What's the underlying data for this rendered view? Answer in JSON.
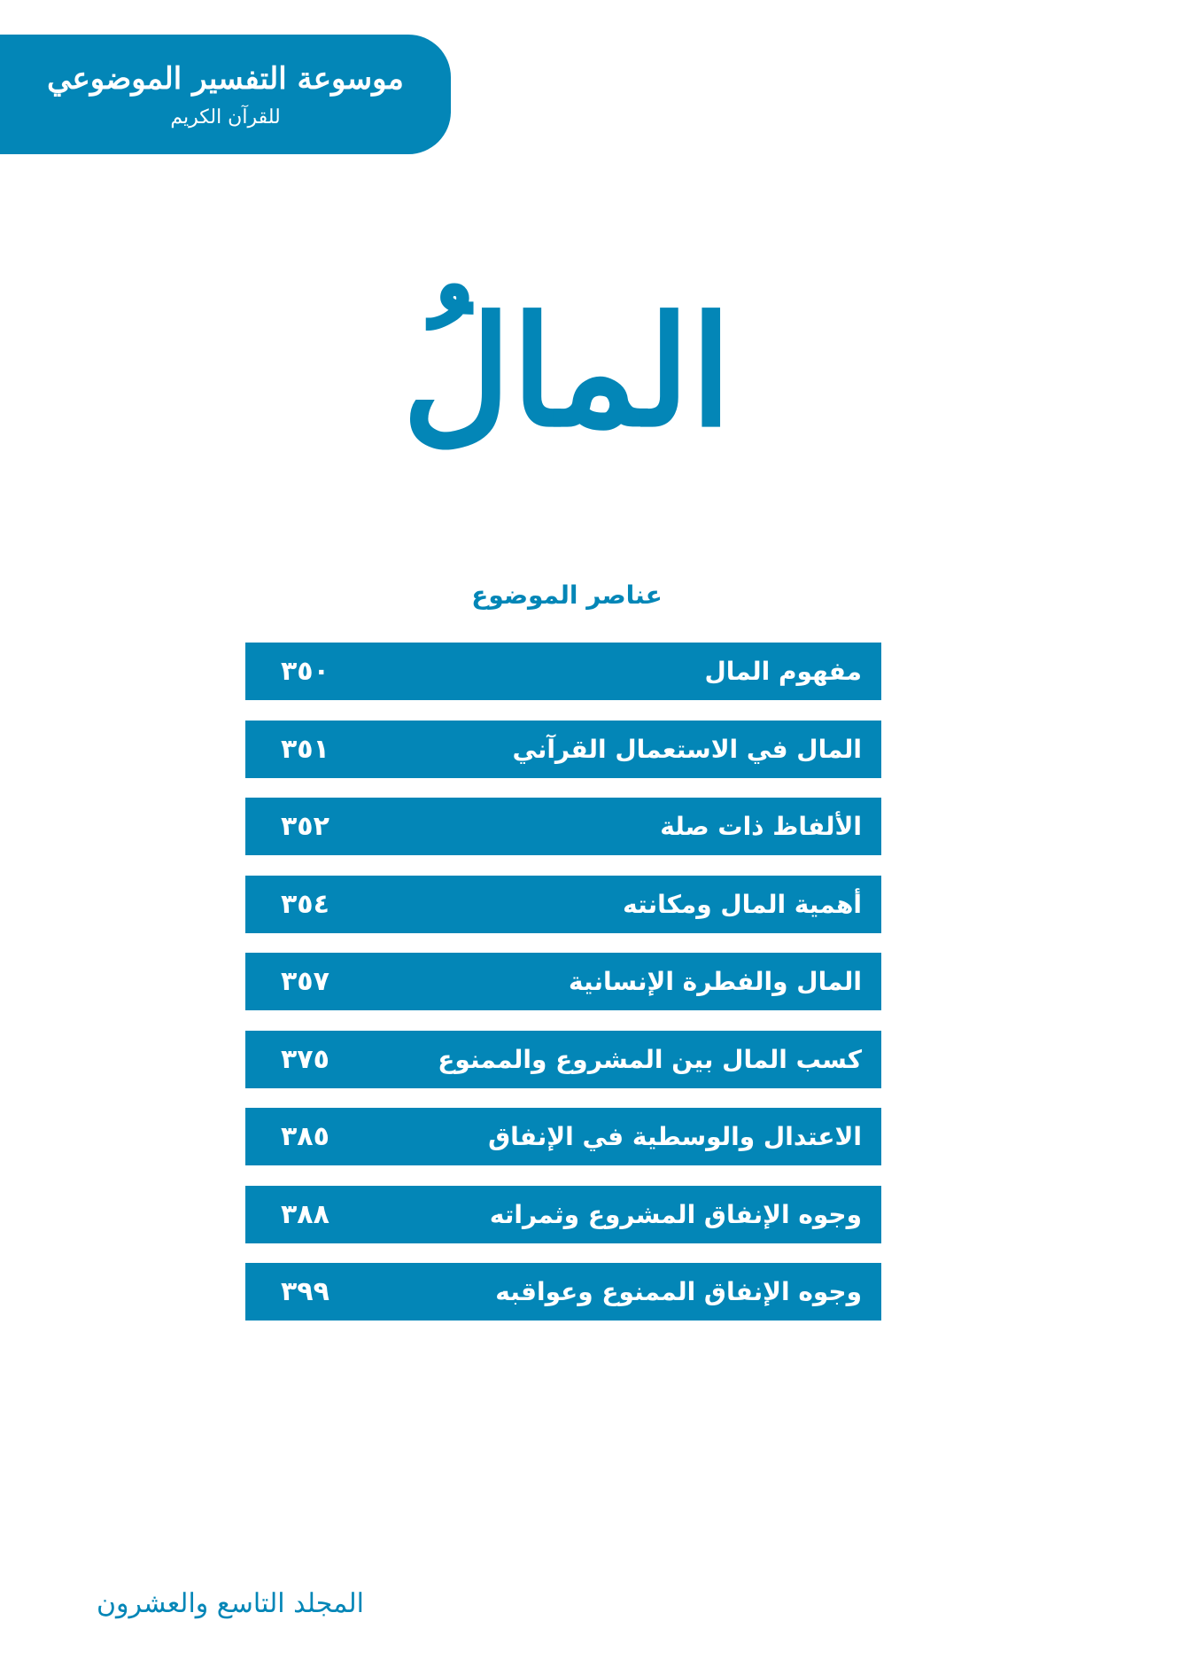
{
  "header": {
    "series_title": "موسوعة التفسير الموضوعي",
    "series_subtitle": "للقرآن الكريم",
    "brand_color": "#0386b7"
  },
  "topic_title": "المالُ",
  "toc": {
    "heading": "عناصر الموضوع",
    "items": [
      {
        "label": "مفهوم المال",
        "page": "٣٥٠"
      },
      {
        "label": "المال في الاستعمال القرآني",
        "page": "٣٥١"
      },
      {
        "label": "الألفاظ ذات صلة",
        "page": "٣٥٢"
      },
      {
        "label": "أهمية المال ومكانته",
        "page": "٣٥٤"
      },
      {
        "label": "المال والفطرة الإنسانية",
        "page": "٣٥٧"
      },
      {
        "label": "كسب المال بين المشروع والممنوع",
        "page": "٣٧٥"
      },
      {
        "label": "الاعتدال والوسطية في الإنفاق",
        "page": "٣٨٥"
      },
      {
        "label": "وجوه الإنفاق المشروع وثمراته",
        "page": "٣٨٨"
      },
      {
        "label": "وجوه الإنفاق الممنوع وعواقبه",
        "page": "٣٩٩"
      }
    ]
  },
  "footer": {
    "volume": "المجلد التاسع والعشرون"
  }
}
